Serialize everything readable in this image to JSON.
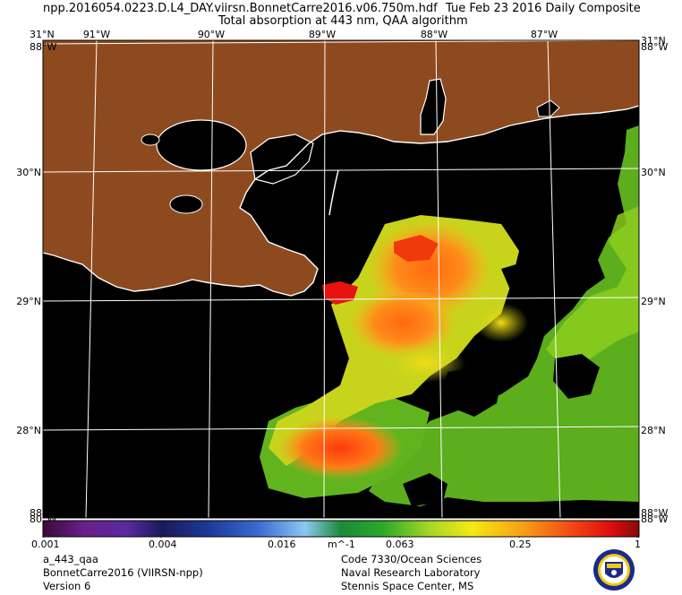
{
  "header": {
    "filename": "npp.2016054.0223.D.L4_DAY.viirsn.BonnetCarre2016.v06.750m.hdf",
    "date": "Tue Feb 23 2016 Daily Composite",
    "product": "Total absorption at 443 nm, QAA algorithm"
  },
  "map": {
    "lon_labels": [
      "91°W",
      "90°W",
      "89°W",
      "88°W",
      "87°W"
    ],
    "lat_labels_left": [
      "31°N",
      "30°N",
      "29°N",
      "28°N"
    ],
    "lat_labels_right": [
      "31°N",
      "30°N",
      "29°N",
      "28°N"
    ],
    "corner_top_left": "31°N",
    "corner_bottom_left": "88°W",
    "corner_top_right": "31°N",
    "corner_bottom_right": "88°W",
    "overlap_tl": "88°W",
    "overlap_bl": "80°W",
    "overlap_tr": "88°W",
    "overlap_br": "88°W",
    "colors": {
      "land": "#8e4a1f",
      "water_nodata": "#000000",
      "graticule": "#ffffff"
    }
  },
  "colorbar": {
    "ticks": [
      "0.001",
      "0.004",
      "0.016",
      "0.063",
      "0.25",
      "1"
    ],
    "units": "m^-1",
    "scale": "log",
    "range": [
      0.001,
      1
    ]
  },
  "footer": {
    "left": [
      "a_443_qaa",
      "BonnetCarre2016 (VIIRSN-npp)",
      "Version 6"
    ],
    "right": [
      "Code 7330/Ocean Sciences",
      "Naval Research Laboratory",
      "Stennis Space Center, MS"
    ]
  }
}
